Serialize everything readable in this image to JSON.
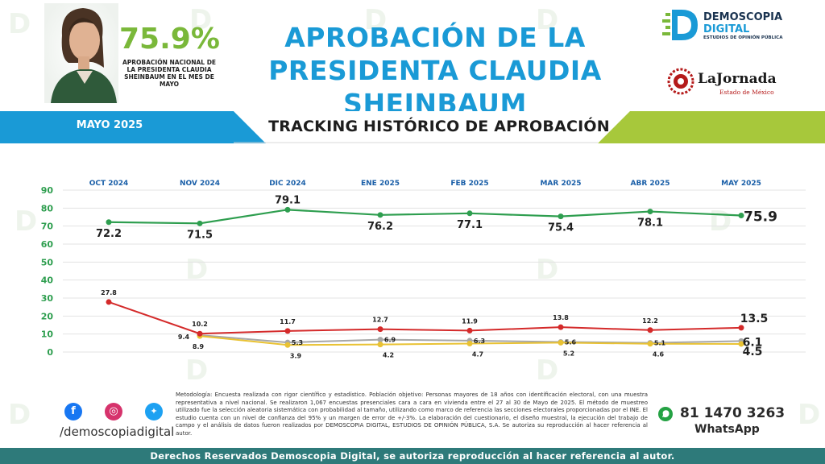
{
  "header": {
    "headline_percent": "75.9%",
    "headline_caption": "APROBACIÓN NACIONAL DE LA PRESIDENTA CLAUDIA SHEINBAUM EN EL MES DE MAYO",
    "title_line1": "APROBACIÓN DE LA",
    "title_line2": "PRESIDENTA CLAUDIA SHEINBAUM",
    "brand_line1": "DEMOSCOPIA",
    "brand_line2": "DIGITAL",
    "brand_tagline": "ESTUDIOS DE OPINIÓN PÚBLICA",
    "press_name": "LaJornada",
    "press_subtitle": "Estado de México"
  },
  "band": {
    "month": "MAYO 2025",
    "title": "TRACKING HISTÓRICO DE APROBACIÓN"
  },
  "chart_data": {
    "type": "line",
    "categories": [
      "OCT 2024",
      "NOV 2024",
      "DIC 2024",
      "ENE 2025",
      "FEB 2025",
      "MAR 2025",
      "ABR 2025",
      "MAY 2025"
    ],
    "ylim": [
      0,
      90
    ],
    "yticks": [
      0,
      10,
      20,
      30,
      40,
      50,
      60,
      70,
      80,
      90
    ],
    "grid": true,
    "series": [
      {
        "color": "#2e9e4f",
        "values": [
          72.2,
          71.5,
          79.1,
          76.2,
          77.1,
          75.4,
          78.1,
          75.9
        ],
        "labels": [
          "72.2",
          "71.5",
          "79.1",
          "76.2",
          "77.1",
          "75.4",
          "78.1",
          "75.9"
        ]
      },
      {
        "color": "#d42a2a",
        "values": [
          27.8,
          10.2,
          11.7,
          12.7,
          11.9,
          13.8,
          12.2,
          13.5
        ],
        "labels": [
          "27.8",
          "10.2",
          "11.7",
          "12.7",
          "11.9",
          "13.8",
          "12.2",
          "13.5"
        ]
      },
      {
        "color": "#a7a7a7",
        "values": [
          null,
          9.4,
          5.3,
          6.9,
          6.3,
          5.6,
          5.1,
          6.1
        ],
        "labels": [
          "",
          "9.4",
          "5.3",
          "6.9",
          "6.3",
          "5.6",
          "5.1",
          "6.1"
        ]
      },
      {
        "color": "#e9c233",
        "values": [
          null,
          8.9,
          3.9,
          4.2,
          4.7,
          5.2,
          4.6,
          4.5
        ],
        "labels": [
          "",
          "8.9",
          "3.9",
          "4.2",
          "4.7",
          "5.2",
          "4.6",
          "4.5"
        ]
      }
    ]
  },
  "methodology": "Metodología: Encuesta realizada con rigor científico y estadístico. Población objetivo: Personas mayores de 18 años con identificación electoral, con una muestra representativa a nivel nacional. Se realizaron 1,067 encuestas presenciales cara a cara en vivienda entre el 27 al 30 de Mayo de 2025. El método de muestreo utilizado fue la selección aleatoria sistemática con probabilidad al tamaño, utilizando como marco de referencia las secciones electorales proporcionadas por el INE. El estudio cuenta con un nivel de confianza del 95% y un margen de error de +/-3%. La elaboración del cuestionario, el diseño muestral, la ejecución del trabajo de campo y el análisis de datos fueron realizados por DEMOSCOPIA DIGITAL, ESTUDIOS DE OPINIÓN PÚBLICA, S.A. Se autoriza su reproducción al hacer referencia al autor.",
  "social": {
    "handle": "/demoscopiadigital",
    "icons": [
      "facebook-icon",
      "instagram-icon",
      "twitter-icon"
    ]
  },
  "contact": {
    "phone": "81 1470 3263",
    "whatsapp_label": "WhatsApp"
  },
  "footer": {
    "text": "Derechos Reservados Demoscopia Digital, se autoriza reproducción al hacer referencia al autor."
  },
  "colors": {
    "title_blue": "#1a9ad6",
    "accent_green": "#7ab83a",
    "band_blue": "#1a9ad6",
    "band_green": "#a7c83b",
    "footer_teal": "#2e7a7a"
  }
}
